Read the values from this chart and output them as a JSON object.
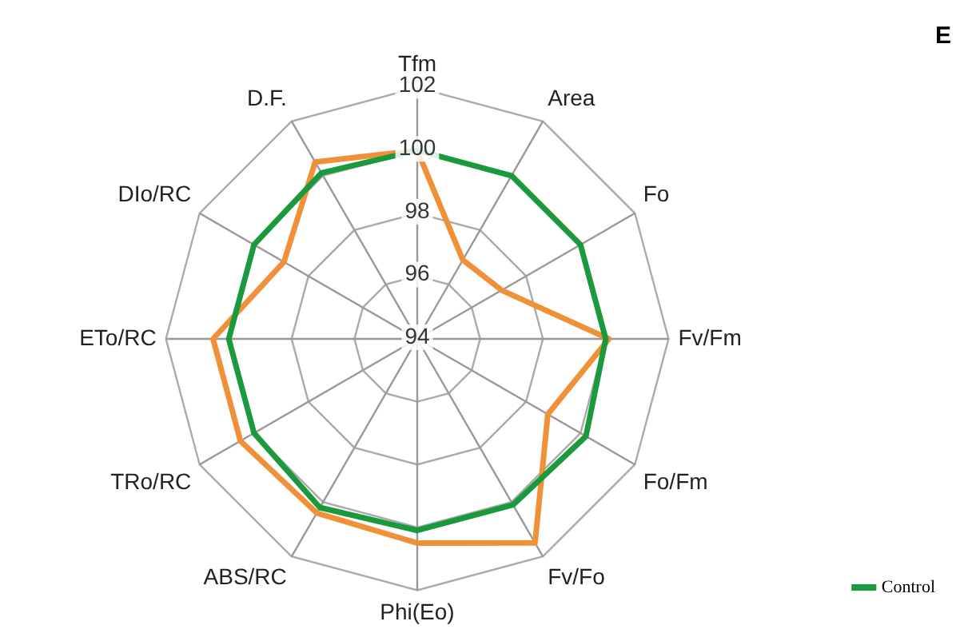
{
  "chart_data": {
    "type": "radar",
    "title": "E",
    "categories": [
      "Tfm",
      "Area",
      "Fo",
      "Fv/Fm",
      "Fo/Fm",
      "Fv/Fo",
      "Phi(Eo)",
      "ABS/RC",
      "TRo/RC",
      "ETo/RC",
      "DIo/RC",
      "D.F."
    ],
    "series": [
      {
        "name": "Control",
        "color": "#1a9a3c",
        "values": [
          100,
          100,
          100,
          100,
          100.2,
          100.1,
          100.1,
          100.2,
          100,
          100,
          100,
          100.1
        ]
      },
      {
        "color": "#f0913a",
        "values": [
          100,
          96.9,
          97.1,
          100.1,
          98.8,
          101.5,
          100.5,
          100.4,
          100.5,
          100.5,
          98.9,
          100.5
        ]
      }
    ],
    "ylim": [
      94,
      102
    ],
    "yticks": [
      94,
      96,
      98,
      100,
      102
    ],
    "grid": true,
    "legend": "bottom right",
    "marker": "none",
    "line_style": "solid"
  }
}
